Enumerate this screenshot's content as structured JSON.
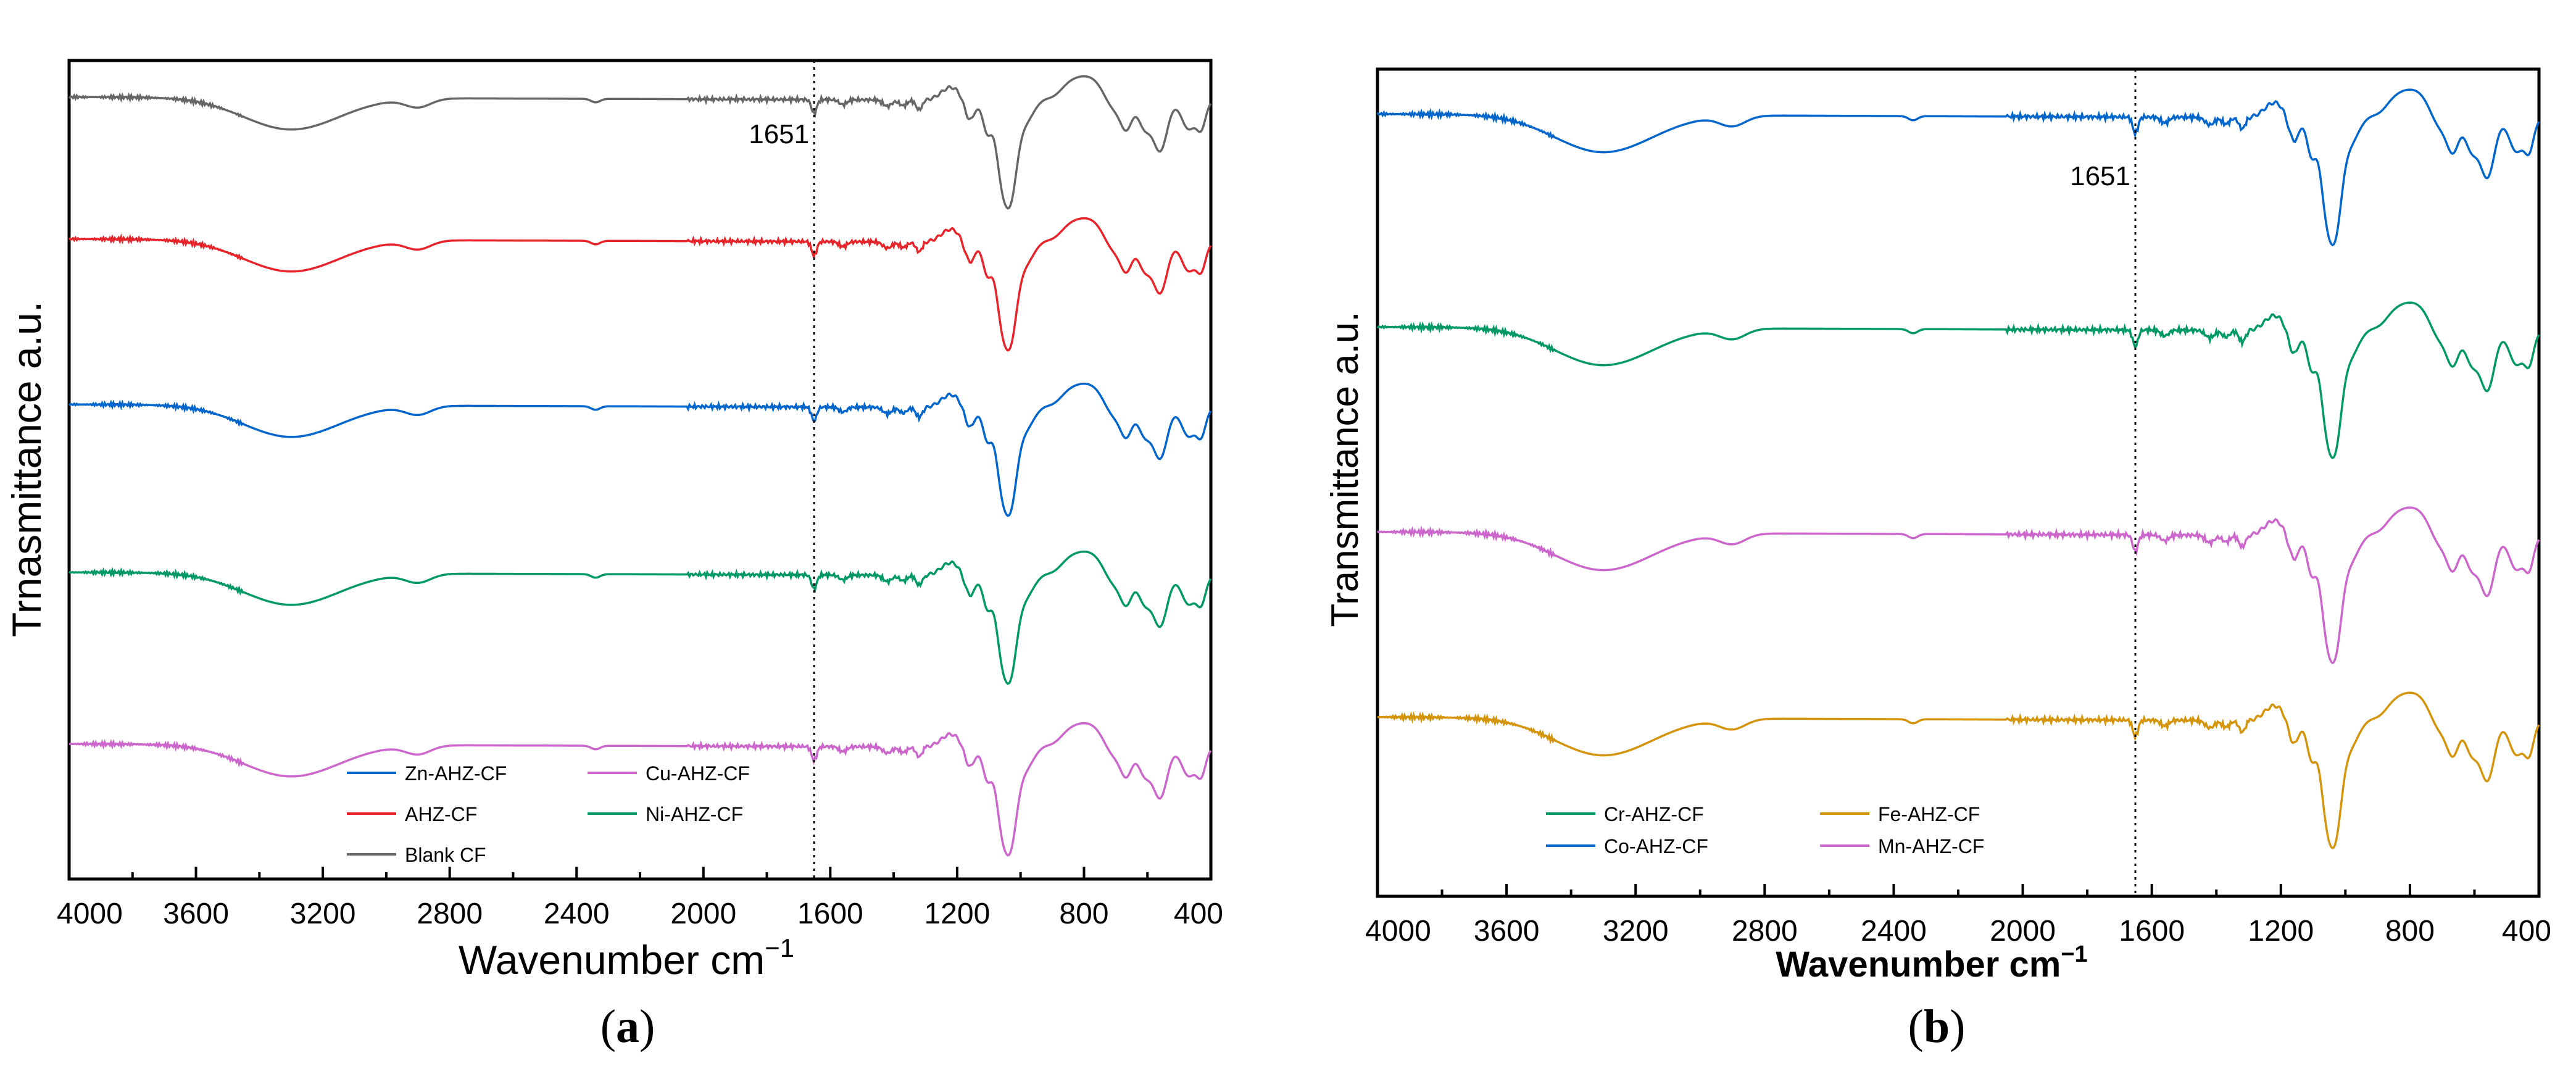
{
  "chart_data": [
    {
      "id": "a",
      "type": "line",
      "panel_label_letter": "a",
      "xlabel": "Wavenumber cm",
      "xlabel_sup": "−1",
      "ylabel": "Trnasmittance a.u.",
      "xlim": [
        4000,
        400
      ],
      "x_reversed": true,
      "xticks": [
        4000,
        3600,
        3200,
        2800,
        2400,
        2000,
        1600,
        1200,
        800,
        400
      ],
      "y_ticks_shown": false,
      "grid": false,
      "legend_position": "bottom-left",
      "reference_line": {
        "x": 1651,
        "label": "1651",
        "style": "dotted"
      },
      "series": [
        {
          "name": "Cu-AHZ-CF",
          "color": "#cc66cc",
          "offset": 4
        },
        {
          "name": "Ni-AHZ-CF",
          "color": "#009966",
          "offset": 3
        },
        {
          "name": "Zn-AHZ-CF",
          "color": "#0066cc",
          "offset": 2
        },
        {
          "name": "AHZ-CF",
          "color": "#e8242b",
          "offset": 1
        },
        {
          "name": "Blank CF",
          "color": "#666666",
          "offset": 0
        }
      ],
      "legend_order": [
        "Zn-AHZ-CF",
        "Cu-AHZ-CF",
        "AHZ-CF",
        "Ni-AHZ-CF",
        "Blank CF"
      ]
    },
    {
      "id": "b",
      "type": "line",
      "panel_label_letter": "b",
      "xlabel": "Wavenumber cm",
      "xlabel_sup": "−1",
      "ylabel": "Transmittance a.u.",
      "xlim": [
        4000,
        400
      ],
      "x_reversed": true,
      "xticks": [
        4000,
        3600,
        3200,
        2800,
        2400,
        2000,
        1600,
        1200,
        800,
        400
      ],
      "y_ticks_shown": false,
      "grid": false,
      "legend_position": "bottom-left",
      "reference_line": {
        "x": 1651,
        "label": "1651",
        "style": "dotted"
      },
      "series": [
        {
          "name": "Fe-AHZ-CF",
          "color": "#d4950c",
          "offset": 3
        },
        {
          "name": "Mn-AHZ-CF",
          "color": "#cc66cc",
          "offset": 2
        },
        {
          "name": "Cr-AHZ-CF",
          "color": "#009966",
          "offset": 1
        },
        {
          "name": "Co-AHZ-CF",
          "color": "#0066cc",
          "offset": 0
        }
      ],
      "legend_order": [
        "Cr-AHZ-CF",
        "Fe-AHZ-CF",
        "Co-AHZ-CF",
        "Mn-AHZ-CF"
      ]
    }
  ]
}
